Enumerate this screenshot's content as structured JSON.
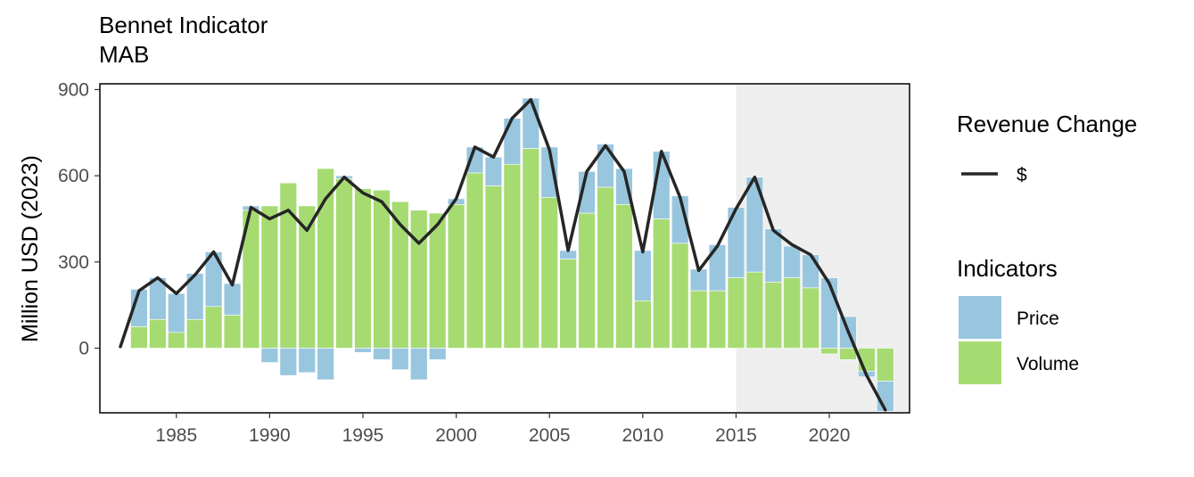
{
  "title": "Bennet Indicator",
  "subtitle": "MAB",
  "chart_data": {
    "type": "bar",
    "stacked": true,
    "ylabel": "Million USD (2023)",
    "xlabel": "",
    "ylim": [
      -225,
      920
    ],
    "xlim": [
      1980.9,
      2024.3
    ],
    "yticks": [
      0,
      300,
      600,
      900
    ],
    "ytick_labels": [
      "0",
      "300",
      "600",
      "900"
    ],
    "xticks": [
      1985,
      1990,
      1995,
      2000,
      2005,
      2010,
      2015,
      2020
    ],
    "xtick_labels": [
      "1985",
      "1990",
      "1995",
      "2000",
      "2005",
      "2010",
      "2015",
      "2020"
    ],
    "shaded_region": [
      2015,
      2024.3
    ],
    "grid": false,
    "colors": {
      "Price": "#99c6df",
      "Volume": "#a6db72",
      "line": "#262626",
      "shade": "#eeeeee"
    },
    "x": [
      1983,
      1984,
      1985,
      1986,
      1987,
      1988,
      1989,
      1990,
      1991,
      1992,
      1993,
      1994,
      1995,
      1996,
      1997,
      1998,
      1999,
      2000,
      2001,
      2002,
      2003,
      2004,
      2005,
      2006,
      2007,
      2008,
      2009,
      2010,
      2011,
      2012,
      2013,
      2014,
      2015,
      2016,
      2017,
      2018,
      2019,
      2020,
      2021,
      2022,
      2023
    ],
    "series": [
      {
        "name": "Volume",
        "values": [
          75,
          100,
          55,
          100,
          145,
          115,
          480,
          495,
          575,
          495,
          625,
          590,
          555,
          550,
          510,
          480,
          470,
          500,
          610,
          565,
          640,
          695,
          525,
          310,
          470,
          560,
          500,
          165,
          450,
          365,
          200,
          200,
          245,
          265,
          230,
          245,
          210,
          -20,
          -40,
          -80,
          -115
        ]
      },
      {
        "name": "Price",
        "values": [
          130,
          145,
          135,
          160,
          190,
          110,
          15,
          -50,
          -95,
          -85,
          -110,
          10,
          -15,
          -40,
          -75,
          -110,
          -40,
          20,
          90,
          100,
          160,
          175,
          175,
          30,
          145,
          150,
          125,
          175,
          235,
          165,
          75,
          160,
          245,
          330,
          185,
          110,
          115,
          245,
          110,
          -20,
          -105
        ]
      }
    ],
    "line": {
      "name": "$",
      "x": [
        1982,
        1983,
        1984,
        1985,
        1986,
        1987,
        1988,
        1989,
        1990,
        1991,
        1992,
        1993,
        1994,
        1995,
        1996,
        1997,
        1998,
        1999,
        2000,
        2001,
        2002,
        2003,
        2004,
        2005,
        2006,
        2007,
        2008,
        2009,
        2010,
        2011,
        2012,
        2013,
        2014,
        2015,
        2016,
        2017,
        2018,
        2019,
        2020,
        2021,
        2022,
        2023
      ],
      "values": [
        5,
        200,
        245,
        190,
        255,
        335,
        220,
        490,
        450,
        480,
        410,
        520,
        595,
        540,
        510,
        430,
        365,
        430,
        520,
        700,
        665,
        800,
        865,
        690,
        340,
        615,
        705,
        615,
        335,
        685,
        525,
        270,
        355,
        485,
        595,
        410,
        360,
        325,
        225,
        60,
        -95,
        -215
      ]
    },
    "legends": [
      {
        "title": "Revenue Change",
        "items": [
          {
            "label": "$",
            "kind": "line"
          }
        ]
      },
      {
        "title": "Indicators",
        "items": [
          {
            "label": "Price",
            "kind": "fill"
          },
          {
            "label": "Volume",
            "kind": "fill"
          }
        ]
      }
    ]
  }
}
